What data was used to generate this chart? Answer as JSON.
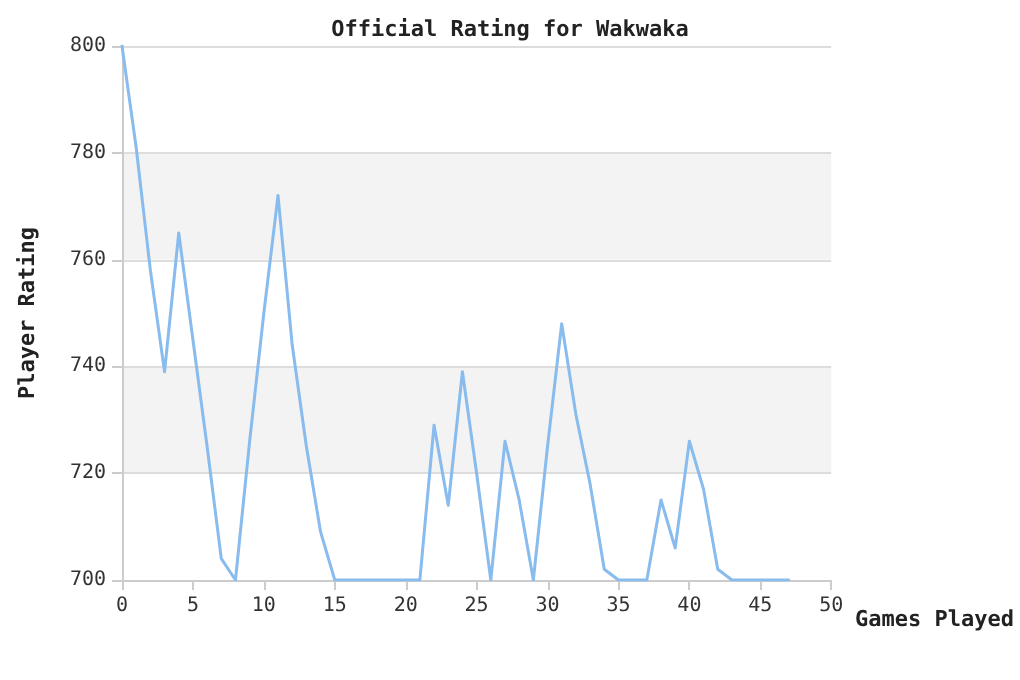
{
  "chart_data": {
    "type": "line",
    "title": "Official Rating for Wakwaka",
    "xlabel": "Games Played",
    "ylabel": "Player Rating",
    "x": [
      0,
      1,
      2,
      3,
      4,
      5,
      6,
      7,
      8,
      9,
      10,
      11,
      12,
      13,
      14,
      15,
      16,
      17,
      18,
      19,
      20,
      21,
      22,
      23,
      24,
      25,
      26,
      27,
      28,
      29,
      30,
      31,
      32,
      33,
      34,
      35,
      36,
      37,
      38,
      39,
      40,
      41,
      42,
      43,
      44,
      45,
      46,
      47
    ],
    "series": [
      {
        "color": "#88bbee",
        "values": [
          800,
          781,
          758,
          739,
          765,
          745,
          725,
          704,
          700,
          726,
          750,
          772,
          744,
          725,
          709,
          700,
          700,
          700,
          700,
          700,
          700,
          700,
          729,
          714,
          739,
          720,
          700,
          726,
          715,
          700,
          725,
          748,
          731,
          718,
          702,
          700,
          700,
          700,
          715,
          706,
          726,
          717,
          702,
          700,
          700,
          700,
          700,
          700
        ]
      }
    ],
    "xlim": [
      0,
      50
    ],
    "xticks": [
      0,
      5,
      10,
      15,
      20,
      25,
      30,
      35,
      40,
      45,
      50
    ],
    "ylim": [
      700,
      800
    ],
    "yticks": [
      700,
      720,
      740,
      760,
      780,
      800
    ],
    "grid": "y",
    "marker": "none",
    "line_style": "solid"
  }
}
